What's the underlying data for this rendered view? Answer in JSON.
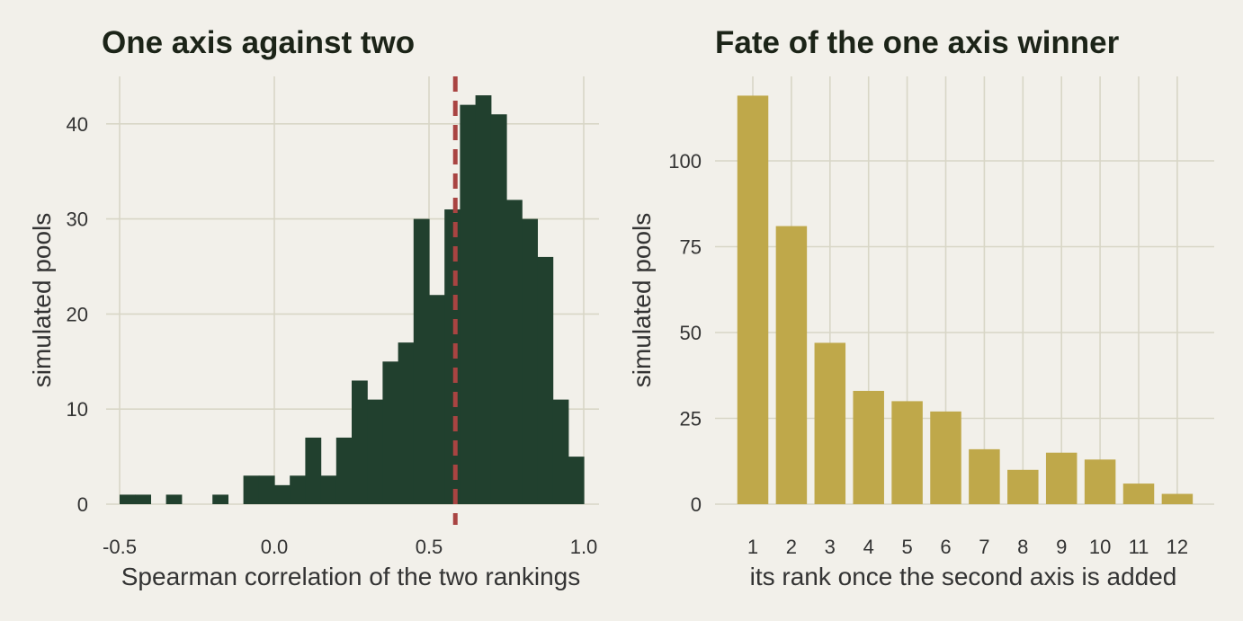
{
  "colors": {
    "background": "#f2f0ea",
    "left_bars": "#21402e",
    "right_bars": "#bfa84a",
    "reference_line": "#a94442",
    "grid": "#d8d6c6"
  },
  "chart_data": [
    {
      "type": "bar",
      "subtype": "histogram",
      "title": "One axis against two",
      "xlabel": "Spearman correlation of the two rankings",
      "ylabel": "simulated pools",
      "bin_width": 0.05,
      "bin_starts": [
        -0.5,
        -0.45,
        -0.4,
        -0.35,
        -0.3,
        -0.25,
        -0.2,
        -0.15,
        -0.1,
        -0.05,
        0.0,
        0.05,
        0.1,
        0.15,
        0.2,
        0.25,
        0.3,
        0.35,
        0.4,
        0.45,
        0.5,
        0.55,
        0.6,
        0.65,
        0.7,
        0.75,
        0.8,
        0.85,
        0.9,
        0.95
      ],
      "values": [
        1,
        1,
        0,
        1,
        0,
        0,
        1,
        0,
        3,
        3,
        2,
        3,
        7,
        3,
        7,
        13,
        11,
        15,
        17,
        30,
        22,
        31,
        42,
        43,
        41,
        32,
        30,
        26,
        11,
        5
      ],
      "reference_line": {
        "x": 0.585,
        "style": "dashed"
      },
      "xlim": [
        -0.55,
        1.05
      ],
      "ylim": [
        0,
        45
      ],
      "x_ticks": [
        -0.5,
        0.0,
        0.5,
        1.0
      ],
      "x_tick_labels": [
        "-0.5",
        "0.0",
        "0.5",
        "1.0"
      ],
      "y_ticks": [
        0,
        10,
        20,
        30,
        40
      ],
      "y_tick_labels": [
        "0",
        "10",
        "20",
        "30",
        "40"
      ],
      "grid": true
    },
    {
      "type": "bar",
      "title": "Fate of the one axis winner",
      "xlabel": "its rank once the second axis is added",
      "ylabel": "simulated pools",
      "categories": [
        "1",
        "2",
        "3",
        "4",
        "5",
        "6",
        "7",
        "8",
        "9",
        "10",
        "11",
        "12"
      ],
      "values": [
        119,
        81,
        47,
        33,
        30,
        27,
        16,
        10,
        15,
        13,
        6,
        3
      ],
      "ylim": [
        0,
        119
      ],
      "y_ticks": [
        0,
        25,
        50,
        75,
        100
      ],
      "y_tick_labels": [
        "0",
        "25",
        "50",
        "75",
        "100"
      ],
      "grid": true
    }
  ]
}
